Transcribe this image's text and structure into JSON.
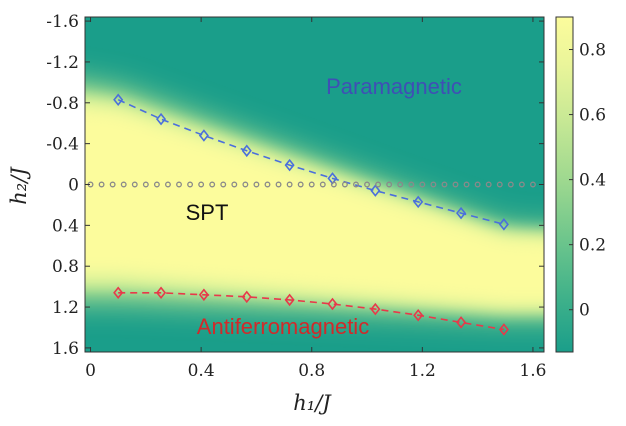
{
  "chart_data": {
    "type": "heatmap",
    "title": "",
    "xlabel": "h₁/J",
    "ylabel": "h₂/J",
    "xlim": [
      -0.02,
      1.64
    ],
    "ylim": [
      -1.64,
      1.64
    ],
    "y_inverted": true,
    "x_ticks": [
      0,
      0.4,
      0.8,
      1.2,
      1.6
    ],
    "x_tick_labels": [
      "0",
      "0.4",
      "0.8",
      "1.2",
      "1.6"
    ],
    "y_ticks": [
      -1.6,
      -1.2,
      -0.8,
      -0.4,
      0,
      0.4,
      0.8,
      1.2,
      1.6
    ],
    "y_tick_labels": [
      "-1.6",
      "-1.2",
      "-0.8",
      "-0.4",
      "0",
      "0.4",
      "0.8",
      "1.2",
      "1.6"
    ],
    "colorbar": {
      "range": [
        -0.13,
        0.9
      ],
      "ticks": [
        0,
        0.2,
        0.4,
        0.6,
        0.8
      ],
      "tick_labels": [
        "0",
        "0.2",
        "0.4",
        "0.6",
        "0.8"
      ],
      "colors": [
        "#1a9e8a",
        "#d6f29a",
        "#fcfc9c"
      ]
    },
    "grid": false,
    "annotations": [
      {
        "text": "Paramagnetic",
        "x": 0.98,
        "y": -0.72,
        "color": "#3f4fb5"
      },
      {
        "text": "SPT",
        "x": 0.42,
        "y": 0.19,
        "color": "#111111"
      },
      {
        "text": "Antiferromagnetic",
        "x": 0.71,
        "y": 1.34,
        "color": "#d12a2a"
      }
    ],
    "series": [
      {
        "color": "#4a6fdc",
        "marker": "diamond",
        "style": "dashed",
        "x": [
          0.1,
          0.255,
          0.41,
          0.565,
          0.72,
          0.875,
          1.03,
          1.185,
          1.34,
          1.495
        ],
        "y": [
          -0.83,
          -0.64,
          -0.48,
          -0.33,
          -0.19,
          -0.06,
          0.06,
          0.17,
          0.28,
          0.39
        ]
      },
      {
        "color": "#e8394a",
        "marker": "diamond",
        "style": "dashed",
        "x": [
          0.1,
          0.255,
          0.41,
          0.565,
          0.72,
          0.875,
          1.03,
          1.185,
          1.34,
          1.495
        ],
        "y": [
          1.06,
          1.06,
          1.08,
          1.1,
          1.13,
          1.17,
          1.22,
          1.28,
          1.35,
          1.42
        ]
      },
      {
        "color": "#8a8a8a",
        "marker": "circle",
        "style": "dotted",
        "x": [
          0,
          0.04,
          0.08,
          0.12,
          0.16,
          0.2,
          0.24,
          0.28,
          0.32,
          0.36,
          0.4,
          0.44,
          0.48,
          0.52,
          0.56,
          0.6,
          0.64,
          0.68,
          0.72,
          0.76,
          0.8,
          0.84,
          0.88,
          0.92,
          0.96,
          1.0,
          1.04,
          1.08,
          1.12,
          1.16,
          1.2,
          1.24,
          1.28,
          1.32,
          1.36,
          1.4,
          1.44,
          1.48,
          1.52,
          1.56,
          1.6
        ],
        "y": [
          0,
          0,
          0,
          0,
          0,
          0,
          0,
          0,
          0,
          0,
          0,
          0,
          0,
          0,
          0,
          0,
          0,
          0,
          0,
          0,
          0,
          0,
          0,
          0,
          0,
          0,
          0,
          0,
          0,
          0,
          0,
          0,
          0,
          0,
          0,
          0,
          0,
          0,
          0,
          0,
          0
        ]
      }
    ]
  }
}
